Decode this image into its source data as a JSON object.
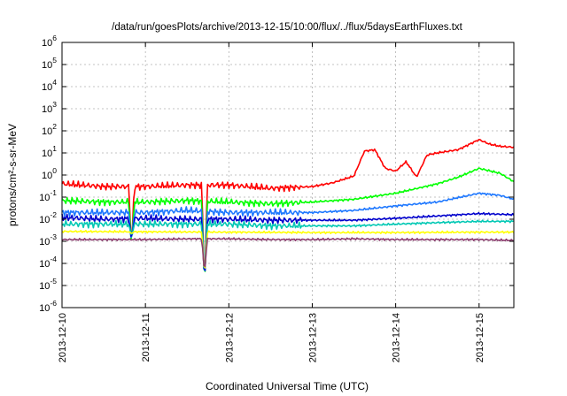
{
  "chart_data": {
    "type": "line",
    "title": "/data/run/goesPlots/archive/2013-12-15/10:00/flux/../flux/5daysEarthFluxes.txt",
    "xlabel": "Coordinated Universal Time (UTC)",
    "ylabel": "protons/cm²-s-sr-MeV",
    "y_scale": "log",
    "ylim": [
      1e-06,
      1000000.0
    ],
    "y_ticks": [
      {
        "value": 1e-06,
        "base": "10",
        "exp": "-6"
      },
      {
        "value": 1e-05,
        "base": "10",
        "exp": "-5"
      },
      {
        "value": 0.0001,
        "base": "10",
        "exp": "-4"
      },
      {
        "value": 0.001,
        "base": "10",
        "exp": "-3"
      },
      {
        "value": 0.01,
        "base": "10",
        "exp": "-2"
      },
      {
        "value": 0.1,
        "base": "10",
        "exp": "-1"
      },
      {
        "value": 1,
        "base": "10",
        "exp": "0"
      },
      {
        "value": 10.0,
        "base": "10",
        "exp": "1"
      },
      {
        "value": 100.0,
        "base": "10",
        "exp": "2"
      },
      {
        "value": 1000.0,
        "base": "10",
        "exp": "3"
      },
      {
        "value": 10000.0,
        "base": "10",
        "exp": "4"
      },
      {
        "value": 100000.0,
        "base": "10",
        "exp": "5"
      },
      {
        "value": 1000000.0,
        "base": "10",
        "exp": "6"
      }
    ],
    "x_ticks": [
      "2013-12-10",
      "2013-12-11",
      "2013-12-12",
      "2013-12-13",
      "2013-12-14",
      "2013-12-15"
    ],
    "xlim": [
      "2013-12-10T00:00",
      "2013-12-15T10:00"
    ],
    "grid": true,
    "legend": "none",
    "series": [
      {
        "color": "#ff0000",
        "x": [
          "2013-12-10T00:00",
          "2013-12-10T12:00",
          "2013-12-11T00:00",
          "2013-12-11T12:00",
          "2013-12-12T00:00",
          "2013-12-12T12:00",
          "2013-12-13T00:00",
          "2013-12-13T06:00",
          "2013-12-13T12:00",
          "2013-12-13T15:00",
          "2013-12-13T18:00",
          "2013-12-13T21:00",
          "2013-12-14T00:00",
          "2013-12-14T03:00",
          "2013-12-14T06:00",
          "2013-12-14T09:00",
          "2013-12-14T12:00",
          "2013-12-14T18:00",
          "2013-12-15T00:00",
          "2013-12-15T03:00",
          "2013-12-15T06:00",
          "2013-12-15T10:00"
        ],
        "y": [
          0.4,
          0.3,
          0.3,
          0.35,
          0.35,
          0.25,
          0.3,
          0.45,
          0.9,
          12,
          14,
          2,
          1.5,
          4,
          0.8,
          8,
          10,
          14,
          40,
          25,
          20,
          18
        ]
      },
      {
        "color": "#00ff00",
        "x": [
          "2013-12-10T00:00",
          "2013-12-10T12:00",
          "2013-12-11T00:00",
          "2013-12-11T12:00",
          "2013-12-12T00:00",
          "2013-12-12T12:00",
          "2013-12-13T00:00",
          "2013-12-13T12:00",
          "2013-12-14T00:00",
          "2013-12-14T12:00",
          "2013-12-14T18:00",
          "2013-12-15T00:00",
          "2013-12-15T06:00",
          "2013-12-15T10:00"
        ],
        "y": [
          0.07,
          0.06,
          0.06,
          0.07,
          0.06,
          0.05,
          0.06,
          0.08,
          0.15,
          0.4,
          0.8,
          2,
          1.2,
          0.5
        ]
      },
      {
        "color": "#1e78ff",
        "x": [
          "2013-12-10T00:00",
          "2013-12-10T12:00",
          "2013-12-11T00:00",
          "2013-12-11T12:00",
          "2013-12-12T00:00",
          "2013-12-12T12:00",
          "2013-12-13T00:00",
          "2013-12-13T12:00",
          "2013-12-14T00:00",
          "2013-12-14T12:00",
          "2013-12-15T00:00",
          "2013-12-15T06:00",
          "2013-12-15T10:00"
        ],
        "y": [
          0.02,
          0.02,
          0.02,
          0.025,
          0.02,
          0.02,
          0.02,
          0.025,
          0.04,
          0.06,
          0.15,
          0.12,
          0.08
        ]
      },
      {
        "color": "#0000cc",
        "x": [
          "2013-12-10T00:00",
          "2013-12-10T12:00",
          "2013-12-11T00:00",
          "2013-12-11T12:00",
          "2013-12-12T00:00",
          "2013-12-12T12:00",
          "2013-12-13T00:00",
          "2013-12-13T12:00",
          "2013-12-14T00:00",
          "2013-12-14T12:00",
          "2013-12-15T00:00",
          "2013-12-15T10:00"
        ],
        "y": [
          0.012,
          0.01,
          0.011,
          0.01,
          0.01,
          0.009,
          0.009,
          0.009,
          0.011,
          0.014,
          0.018,
          0.016
        ]
      },
      {
        "color": "#00c8b4",
        "x": [
          "2013-12-10T00:00",
          "2013-12-10T12:00",
          "2013-12-11T00:00",
          "2013-12-11T12:00",
          "2013-12-12T00:00",
          "2013-12-12T12:00",
          "2013-12-13T00:00",
          "2013-12-13T12:00",
          "2013-12-14T00:00",
          "2013-12-14T12:00",
          "2013-12-15T00:00",
          "2013-12-15T10:00"
        ],
        "y": [
          0.006,
          0.006,
          0.006,
          0.006,
          0.006,
          0.005,
          0.005,
          0.005,
          0.006,
          0.007,
          0.008,
          0.008
        ]
      },
      {
        "color": "#ffff00",
        "x": [
          "2013-12-10T00:00",
          "2013-12-11T00:00",
          "2013-12-12T00:00",
          "2013-12-13T00:00",
          "2013-12-14T00:00",
          "2013-12-15T00:00",
          "2013-12-15T10:00"
        ],
        "y": [
          0.0028,
          0.0027,
          0.0026,
          0.0025,
          0.0025,
          0.0026,
          0.0026
        ]
      },
      {
        "color": "#8c3c6e",
        "x": [
          "2013-12-10T00:00",
          "2013-12-10T12:00",
          "2013-12-11T00:00",
          "2013-12-11T12:00",
          "2013-12-12T00:00",
          "2013-12-12T12:00",
          "2013-12-13T00:00",
          "2013-12-13T12:00",
          "2013-12-14T00:00",
          "2013-12-14T12:00",
          "2013-12-15T00:00",
          "2013-12-15T10:00"
        ],
        "y": [
          0.0012,
          0.0012,
          0.0012,
          0.0013,
          0.0013,
          0.0012,
          0.0012,
          0.0013,
          0.0012,
          0.0012,
          0.0012,
          0.0011
        ]
      }
    ],
    "annotations": [
      {
        "text": "",
        "note_x": "2013-12-10T20:00",
        "dip_to": 0.0004
      },
      {
        "text": "",
        "note_x": "2013-12-11T17:00",
        "dip_to": 4e-06
      }
    ]
  }
}
